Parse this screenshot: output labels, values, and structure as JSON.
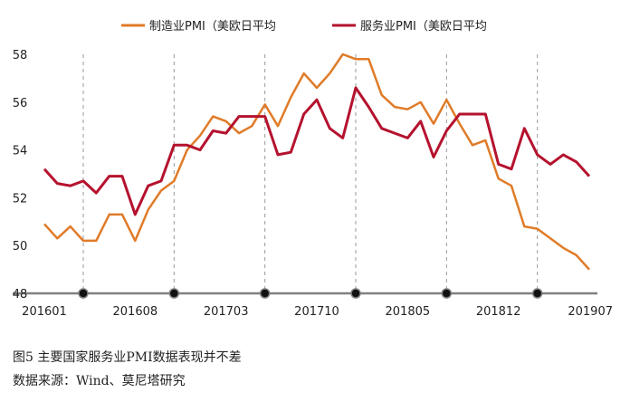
{
  "caption": {
    "title": "图5 主要国家服务业PMI数据表现并不差",
    "source": "数据来源：Wind、莫尼塔研究"
  },
  "chart_data": {
    "type": "line",
    "ylim": [
      48,
      58
    ],
    "yticks": [
      48,
      50,
      52,
      54,
      56,
      58
    ],
    "x_labels": [
      {
        "index": 0,
        "label": "201601"
      },
      {
        "index": 7,
        "label": "201608"
      },
      {
        "index": 14,
        "label": "201703"
      },
      {
        "index": 21,
        "label": "201710"
      },
      {
        "index": 28,
        "label": "201805"
      },
      {
        "index": 35,
        "label": "201812"
      },
      {
        "index": 42,
        "label": "201907"
      }
    ],
    "markers": [
      3,
      10,
      17,
      24,
      31,
      38
    ],
    "grid": "vertical dashed at marker positions",
    "legend_position": "top",
    "series": [
      {
        "name": "制造业PMI（美欧日平均",
        "color": "#e07b28",
        "values": [
          50.9,
          50.3,
          50.8,
          50.2,
          50.2,
          51.3,
          51.3,
          50.2,
          51.5,
          52.3,
          52.7,
          54.0,
          54.6,
          55.4,
          55.2,
          54.7,
          55.0,
          55.9,
          55.0,
          56.2,
          57.2,
          56.6,
          57.2,
          58.0,
          57.8,
          57.8,
          56.3,
          55.8,
          55.7,
          56.0,
          55.1,
          56.1,
          55.1,
          54.2,
          54.4,
          52.8,
          52.5,
          50.8,
          50.7,
          50.3,
          49.9,
          49.6,
          49.0
        ]
      },
      {
        "name": "服务业PMI（美欧日平均",
        "color": "#b5122e",
        "values": [
          53.2,
          52.6,
          52.5,
          52.7,
          52.2,
          52.9,
          52.9,
          51.3,
          52.5,
          52.7,
          54.2,
          54.2,
          54.0,
          54.8,
          54.7,
          55.4,
          55.4,
          55.4,
          53.8,
          53.9,
          55.5,
          56.1,
          54.9,
          54.5,
          56.6,
          55.8,
          54.9,
          54.7,
          54.5,
          55.2,
          53.7,
          54.8,
          55.5,
          55.5,
          55.5,
          53.4,
          53.2,
          54.9,
          53.8,
          53.4,
          53.8,
          53.5,
          52.9
        ]
      }
    ]
  }
}
